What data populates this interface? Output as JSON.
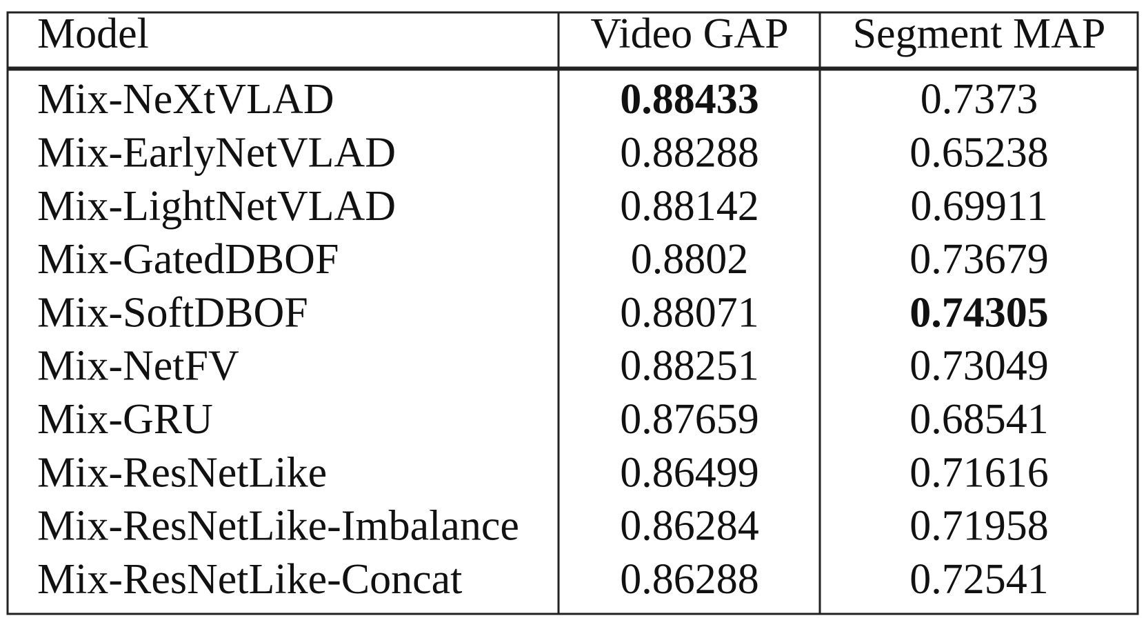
{
  "table": {
    "columns": [
      "Model",
      "Video GAP",
      "Segment MAP"
    ],
    "rows": [
      {
        "model": "Mix-NeXtVLAD",
        "video_gap": 0.88433,
        "segment_map": 0.7373
      },
      {
        "model": "Mix-EarlyNetVLAD",
        "video_gap": 0.88288,
        "segment_map": 0.65238
      },
      {
        "model": "Mix-LightNetVLAD",
        "video_gap": 0.88142,
        "segment_map": 0.69911
      },
      {
        "model": "Mix-GatedDBOF",
        "video_gap": 0.8802,
        "segment_map": 0.73679
      },
      {
        "model": "Mix-SoftDBOF",
        "video_gap": 0.88071,
        "segment_map": 0.74305
      },
      {
        "model": "Mix-NetFV",
        "video_gap": 0.88251,
        "segment_map": 0.73049
      },
      {
        "model": "Mix-GRU",
        "video_gap": 0.87659,
        "segment_map": 0.68541
      },
      {
        "model": "Mix-ResNetLike",
        "video_gap": 0.86499,
        "segment_map": 0.71616
      },
      {
        "model": "Mix-ResNetLike-Imbalance",
        "video_gap": 0.86284,
        "segment_map": 0.71958
      },
      {
        "model": "Mix-ResNetLike-Concat",
        "video_gap": 0.86288,
        "segment_map": 0.72541
      }
    ],
    "best": {
      "video_gap": 0,
      "segment_map": 4
    }
  }
}
